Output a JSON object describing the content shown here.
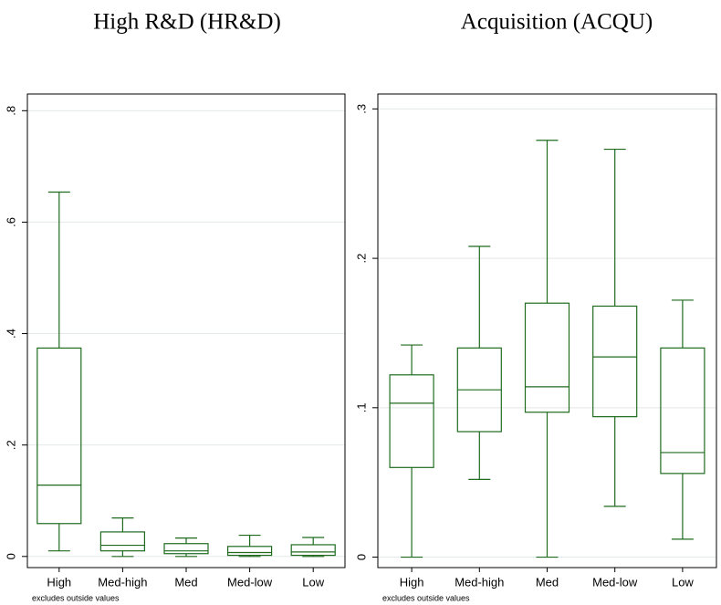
{
  "chart_data": [
    {
      "type": "box",
      "title": "High R&D (HR&D)",
      "note": "excludes outside values",
      "categories": [
        "High",
        "Med-high",
        "Med",
        "Med-low",
        "Low"
      ],
      "color": "#1e6b1e",
      "min": [
        0.01,
        0,
        0,
        0,
        0
      ],
      "q1": [
        0.059,
        0.01,
        0.005,
        0.002,
        0.002
      ],
      "median": [
        0.128,
        0.02,
        0.01,
        0.007,
        0.008
      ],
      "q3": [
        0.374,
        0.044,
        0.023,
        0.018,
        0.021
      ],
      "max": [
        0.654,
        0.069,
        0.033,
        0.038,
        0.034
      ],
      "ylim": [
        -0.02,
        0.83
      ],
      "yticks": [
        0,
        {
          "value": 0.2,
          "label": ".2"
        },
        {
          "value": 0.4,
          "label": ".4"
        },
        {
          "value": 0.6,
          "label": ".6"
        },
        {
          "value": 0.8,
          "label": ".8"
        }
      ],
      "grid": true
    },
    {
      "type": "box",
      "title": "Acquisition (ACQU)",
      "note": "excludes outside values",
      "categories": [
        "High",
        "Med-high",
        "Med",
        "Med-low",
        "Low"
      ],
      "color": "#1e6b1e",
      "min": [
        0,
        0.052,
        0,
        0.034,
        0.012
      ],
      "q1": [
        0.06,
        0.084,
        0.097,
        0.094,
        0.056
      ],
      "median": [
        0.103,
        0.112,
        0.114,
        0.134,
        0.07
      ],
      "q3": [
        0.122,
        0.14,
        0.17,
        0.168,
        0.14
      ],
      "max": [
        0.142,
        0.208,
        0.279,
        0.273,
        0.172
      ],
      "ylim": [
        -0.007,
        0.31
      ],
      "yticks": [
        0,
        {
          "value": 0.1,
          "label": ".1"
        },
        {
          "value": 0.2,
          "label": ".2"
        },
        {
          "value": 0.3,
          "label": ".3"
        }
      ],
      "grid": true
    }
  ]
}
